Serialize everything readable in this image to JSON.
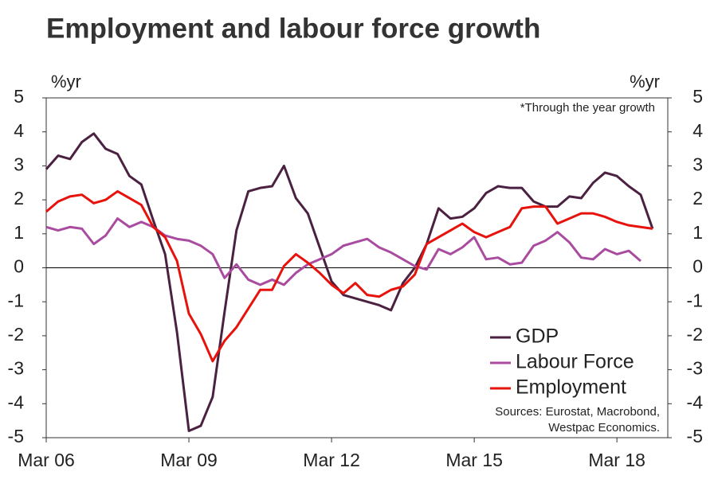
{
  "chart_data": {
    "type": "line",
    "title": "Employment and labour force growth",
    "y_label": "%yr",
    "y2_label": "%yr",
    "annotation": "*Through the year growth",
    "sources": [
      "Sources: Eurostat, Macrobond,",
      "Westpac Economics."
    ],
    "categories": [
      "Mar 06",
      null,
      null,
      null,
      null,
      null,
      null,
      null,
      null,
      null,
      null,
      null,
      "Mar 09",
      null,
      null,
      null,
      null,
      null,
      null,
      null,
      null,
      null,
      null,
      null,
      "Mar 12",
      null,
      null,
      null,
      null,
      null,
      null,
      null,
      null,
      null,
      null,
      null,
      "Mar 15",
      null,
      null,
      null,
      null,
      null,
      null,
      null,
      null,
      null,
      null,
      null,
      "Mar 18",
      null,
      null,
      null,
      null
    ],
    "series": [
      {
        "name": "GDP",
        "color": "#4b2142",
        "values": [
          2.9,
          3.3,
          3.2,
          3.7,
          3.95,
          3.5,
          3.35,
          2.7,
          2.45,
          1.4,
          0.4,
          -1.9,
          -4.8,
          -4.65,
          -3.8,
          -1.3,
          1.1,
          2.25,
          2.35,
          2.4,
          3.0,
          2.05,
          1.6,
          0.6,
          -0.4,
          -0.8,
          -0.9,
          -1.0,
          -1.1,
          -1.25,
          -0.45,
          0.0,
          0.7,
          1.75,
          1.45,
          1.5,
          1.75,
          2.2,
          2.4,
          2.35,
          2.35,
          1.95,
          1.8,
          1.8,
          2.1,
          2.05,
          2.5,
          2.8,
          2.7,
          2.4,
          2.15,
          1.15,
          null
        ]
      },
      {
        "name": "Labour Force",
        "color": "#a94ca0",
        "values": [
          1.2,
          1.1,
          1.2,
          1.15,
          0.7,
          0.95,
          1.45,
          1.2,
          1.35,
          1.2,
          0.95,
          0.85,
          0.8,
          0.65,
          0.4,
          -0.3,
          0.1,
          -0.35,
          -0.5,
          -0.35,
          -0.5,
          -0.15,
          0.1,
          0.25,
          0.4,
          0.65,
          0.75,
          0.85,
          0.6,
          0.45,
          0.25,
          0.05,
          -0.05,
          0.55,
          0.4,
          0.6,
          0.9,
          0.25,
          0.3,
          0.1,
          0.15,
          0.65,
          0.8,
          1.05,
          0.75,
          0.3,
          0.25,
          0.55,
          0.4,
          0.5,
          0.2,
          null,
          null
        ]
      },
      {
        "name": "Employment",
        "color": "#e8120c",
        "values": [
          1.65,
          1.95,
          2.1,
          2.15,
          1.9,
          2.0,
          2.25,
          2.05,
          1.85,
          1.2,
          0.9,
          0.2,
          -1.35,
          -1.95,
          -2.75,
          -2.15,
          -1.75,
          -1.2,
          -0.65,
          -0.65,
          0.05,
          0.4,
          0.15,
          -0.15,
          -0.5,
          -0.75,
          -0.45,
          -0.8,
          -0.85,
          -0.65,
          -0.55,
          -0.2,
          0.7,
          0.9,
          1.1,
          1.3,
          1.05,
          0.9,
          1.05,
          1.2,
          1.75,
          1.8,
          1.8,
          1.3,
          1.45,
          1.6,
          1.6,
          1.5,
          1.35,
          1.25,
          1.2,
          1.15,
          null
        ]
      }
    ],
    "ylim": [
      -5,
      5
    ],
    "yticks": [
      -5,
      -4,
      -3,
      -2,
      -1,
      0,
      1,
      2,
      3,
      4,
      5
    ],
    "y2lim": [
      -5,
      5
    ],
    "y2ticks": [
      -5,
      -4,
      -3,
      -2,
      -1,
      0,
      1,
      2,
      3,
      4,
      5
    ],
    "zero_line": true,
    "legend": "lower right"
  }
}
